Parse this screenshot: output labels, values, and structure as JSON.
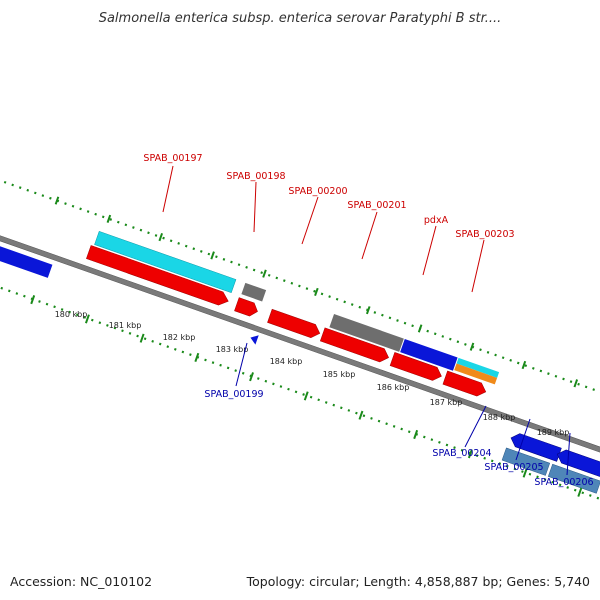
{
  "title": "Salmonella enterica subsp. enterica serovar Paratyphi B str....",
  "footer": {
    "accession": "Accession: NC_010102",
    "summary": "Topology: circular; Length: 4,858,887 bp; Genes: 5,740"
  },
  "colors": {
    "forward_label": "#cc0000",
    "reverse_label": "#0000aa",
    "tick": "#1a8a1a",
    "backbone": "#7a7a7a",
    "red": "#ee0000",
    "gray": "#6e6e6e",
    "blue": "#0a16d8",
    "cyan": "#1ad6e6",
    "orange": "#f08a1a",
    "steelblue": "#4f86b8"
  },
  "scale": {
    "ticks": [
      {
        "label": "180 kbp"
      },
      {
        "label": "181 kbp"
      },
      {
        "label": "182 kbp"
      },
      {
        "label": "183 kbp"
      },
      {
        "label": "184 kbp"
      },
      {
        "label": "185 kbp"
      },
      {
        "label": "186 kbp"
      },
      {
        "label": "187 kbp"
      },
      {
        "label": "188 kbp"
      },
      {
        "label": "189 kbp"
      }
    ]
  },
  "gene_labels": {
    "forward": [
      "SPAB_00197",
      "SPAB_00198",
      "SPAB_00200",
      "SPAB_00201",
      "pdxA",
      "SPAB_00203"
    ],
    "reverse": [
      "SPAB_00199",
      "SPAB_00204",
      "SPAB_00205",
      "SPAB_00206"
    ]
  }
}
